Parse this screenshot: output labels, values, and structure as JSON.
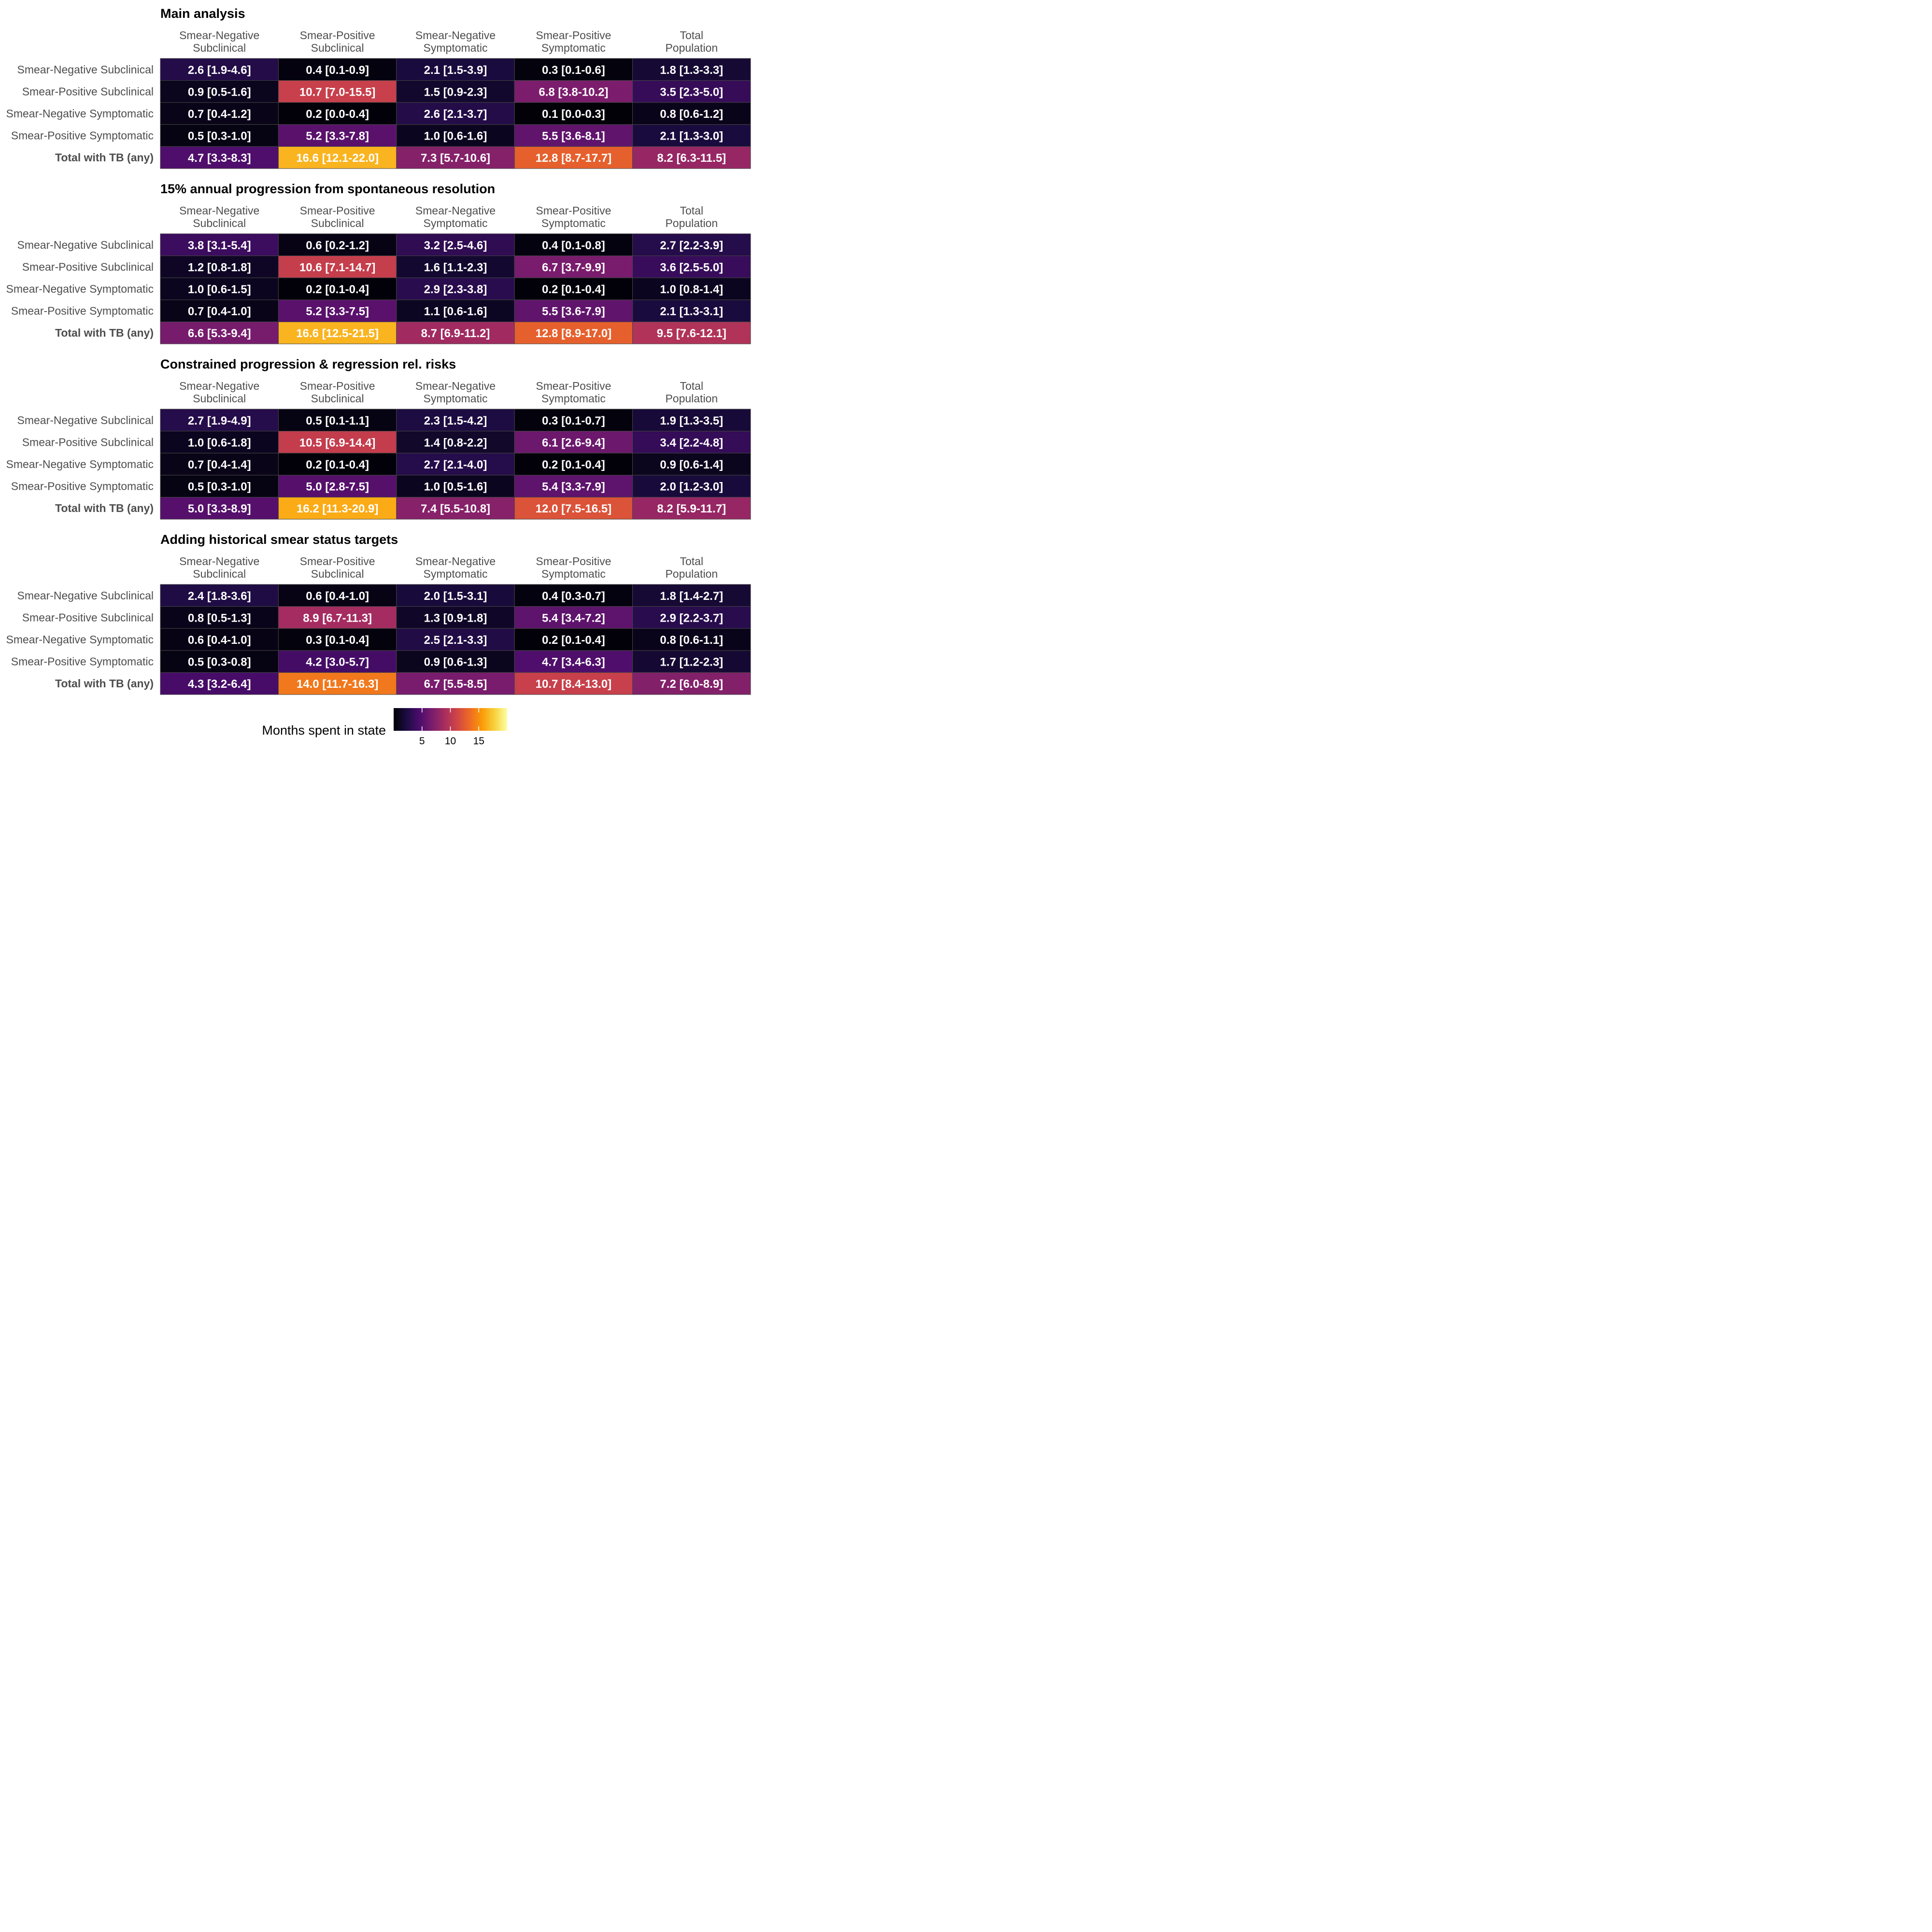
{
  "chart_data": {
    "type": "heatmap",
    "value_label": "Months spent in state",
    "color_scale": {
      "name": "inferno",
      "domain": [
        0,
        20
      ],
      "breaks": [
        5,
        10,
        15
      ],
      "stops": [
        "#000004",
        "#1b0c41",
        "#4a0c6b",
        "#781c6d",
        "#a52c60",
        "#cf4446",
        "#ed6925",
        "#fb9b06",
        "#f7d13d",
        "#fcffa4"
      ]
    },
    "columns": [
      [
        "Smear-Negative",
        "Subclinical"
      ],
      [
        "Smear-Positive",
        "Subclinical"
      ],
      [
        "Smear-Negative",
        "Symptomatic"
      ],
      [
        "Smear-Positive",
        "Symptomatic"
      ],
      [
        "Total",
        "Population"
      ]
    ],
    "rows": [
      {
        "label": "Smear-Negative Subclinical",
        "bold": false
      },
      {
        "label": "Smear-Positive Subclinical",
        "bold": false
      },
      {
        "label": "Smear-Negative Symptomatic",
        "bold": false
      },
      {
        "label": "Smear-Positive Symptomatic",
        "bold": false
      },
      {
        "label": "Total with TB (any)",
        "bold": true
      }
    ],
    "panels": [
      {
        "title": "Main analysis",
        "cells": [
          [
            {
              "v": 2.6,
              "t": "2.6 [1.9-4.6]"
            },
            {
              "v": 0.4,
              "t": "0.4 [0.1-0.9]"
            },
            {
              "v": 2.1,
              "t": "2.1 [1.5-3.9]"
            },
            {
              "v": 0.3,
              "t": "0.3 [0.1-0.6]"
            },
            {
              "v": 1.8,
              "t": "1.8 [1.3-3.3]"
            }
          ],
          [
            {
              "v": 0.9,
              "t": "0.9 [0.5-1.6]"
            },
            {
              "v": 10.7,
              "t": "10.7 [7.0-15.5]"
            },
            {
              "v": 1.5,
              "t": "1.5 [0.9-2.3]"
            },
            {
              "v": 6.8,
              "t": "6.8 [3.8-10.2]"
            },
            {
              "v": 3.5,
              "t": "3.5 [2.3-5.0]"
            }
          ],
          [
            {
              "v": 0.7,
              "t": "0.7 [0.4-1.2]"
            },
            {
              "v": 0.2,
              "t": "0.2 [0.0-0.4]"
            },
            {
              "v": 2.6,
              "t": "2.6 [2.1-3.7]"
            },
            {
              "v": 0.1,
              "t": "0.1 [0.0-0.3]"
            },
            {
              "v": 0.8,
              "t": "0.8 [0.6-1.2]"
            }
          ],
          [
            {
              "v": 0.5,
              "t": "0.5 [0.3-1.0]"
            },
            {
              "v": 5.2,
              "t": "5.2 [3.3-7.8]"
            },
            {
              "v": 1.0,
              "t": "1.0 [0.6-1.6]"
            },
            {
              "v": 5.5,
              "t": "5.5 [3.6-8.1]"
            },
            {
              "v": 2.1,
              "t": "2.1 [1.3-3.0]"
            }
          ],
          [
            {
              "v": 4.7,
              "t": "4.7 [3.3-8.3]"
            },
            {
              "v": 16.6,
              "t": "16.6 [12.1-22.0]"
            },
            {
              "v": 7.3,
              "t": "7.3 [5.7-10.6]"
            },
            {
              "v": 12.8,
              "t": "12.8 [8.7-17.7]"
            },
            {
              "v": 8.2,
              "t": "8.2 [6.3-11.5]"
            }
          ]
        ]
      },
      {
        "title": "15% annual progression from spontaneous resolution",
        "cells": [
          [
            {
              "v": 3.8,
              "t": "3.8 [3.1-5.4]"
            },
            {
              "v": 0.6,
              "t": "0.6 [0.2-1.2]"
            },
            {
              "v": 3.2,
              "t": "3.2 [2.5-4.6]"
            },
            {
              "v": 0.4,
              "t": "0.4 [0.1-0.8]"
            },
            {
              "v": 2.7,
              "t": "2.7 [2.2-3.9]"
            }
          ],
          [
            {
              "v": 1.2,
              "t": "1.2 [0.8-1.8]"
            },
            {
              "v": 10.6,
              "t": "10.6 [7.1-14.7]"
            },
            {
              "v": 1.6,
              "t": "1.6 [1.1-2.3]"
            },
            {
              "v": 6.7,
              "t": "6.7 [3.7-9.9]"
            },
            {
              "v": 3.6,
              "t": "3.6 [2.5-5.0]"
            }
          ],
          [
            {
              "v": 1.0,
              "t": "1.0 [0.6-1.5]"
            },
            {
              "v": 0.2,
              "t": "0.2 [0.1-0.4]"
            },
            {
              "v": 2.9,
              "t": "2.9 [2.3-3.8]"
            },
            {
              "v": 0.2,
              "t": "0.2 [0.1-0.4]"
            },
            {
              "v": 1.0,
              "t": "1.0 [0.8-1.4]"
            }
          ],
          [
            {
              "v": 0.7,
              "t": "0.7 [0.4-1.0]"
            },
            {
              "v": 5.2,
              "t": "5.2 [3.3-7.5]"
            },
            {
              "v": 1.1,
              "t": "1.1 [0.6-1.6]"
            },
            {
              "v": 5.5,
              "t": "5.5 [3.6-7.9]"
            },
            {
              "v": 2.1,
              "t": "2.1 [1.3-3.1]"
            }
          ],
          [
            {
              "v": 6.6,
              "t": "6.6 [5.3-9.4]"
            },
            {
              "v": 16.6,
              "t": "16.6 [12.5-21.5]"
            },
            {
              "v": 8.7,
              "t": "8.7 [6.9-11.2]"
            },
            {
              "v": 12.8,
              "t": "12.8 [8.9-17.0]"
            },
            {
              "v": 9.5,
              "t": "9.5 [7.6-12.1]"
            }
          ]
        ]
      },
      {
        "title": "Constrained progression & regression rel. risks",
        "cells": [
          [
            {
              "v": 2.7,
              "t": "2.7 [1.9-4.9]"
            },
            {
              "v": 0.5,
              "t": "0.5 [0.1-1.1]"
            },
            {
              "v": 2.3,
              "t": "2.3 [1.5-4.2]"
            },
            {
              "v": 0.3,
              "t": "0.3 [0.1-0.7]"
            },
            {
              "v": 1.9,
              "t": "1.9 [1.3-3.5]"
            }
          ],
          [
            {
              "v": 1.0,
              "t": "1.0 [0.6-1.8]"
            },
            {
              "v": 10.5,
              "t": "10.5 [6.9-14.4]"
            },
            {
              "v": 1.4,
              "t": "1.4 [0.8-2.2]"
            },
            {
              "v": 6.1,
              "t": "6.1 [2.6-9.4]"
            },
            {
              "v": 3.4,
              "t": "3.4 [2.2-4.8]"
            }
          ],
          [
            {
              "v": 0.7,
              "t": "0.7 [0.4-1.4]"
            },
            {
              "v": 0.2,
              "t": "0.2 [0.1-0.4]"
            },
            {
              "v": 2.7,
              "t": "2.7 [2.1-4.0]"
            },
            {
              "v": 0.2,
              "t": "0.2 [0.1-0.4]"
            },
            {
              "v": 0.9,
              "t": "0.9 [0.6-1.4]"
            }
          ],
          [
            {
              "v": 0.5,
              "t": "0.5 [0.3-1.0]"
            },
            {
              "v": 5.0,
              "t": "5.0 [2.8-7.5]"
            },
            {
              "v": 1.0,
              "t": "1.0 [0.5-1.6]"
            },
            {
              "v": 5.4,
              "t": "5.4 [3.3-7.9]"
            },
            {
              "v": 2.0,
              "t": "2.0 [1.2-3.0]"
            }
          ],
          [
            {
              "v": 5.0,
              "t": "5.0 [3.3-8.9]"
            },
            {
              "v": 16.2,
              "t": "16.2 [11.3-20.9]"
            },
            {
              "v": 7.4,
              "t": "7.4 [5.5-10.8]"
            },
            {
              "v": 12.0,
              "t": "12.0 [7.5-16.5]"
            },
            {
              "v": 8.2,
              "t": "8.2 [5.9-11.7]"
            }
          ]
        ]
      },
      {
        "title": "Adding historical smear status targets",
        "cells": [
          [
            {
              "v": 2.4,
              "t": "2.4 [1.8-3.6]"
            },
            {
              "v": 0.6,
              "t": "0.6 [0.4-1.0]"
            },
            {
              "v": 2.0,
              "t": "2.0 [1.5-3.1]"
            },
            {
              "v": 0.4,
              "t": "0.4 [0.3-0.7]"
            },
            {
              "v": 1.8,
              "t": "1.8 [1.4-2.7]"
            }
          ],
          [
            {
              "v": 0.8,
              "t": "0.8 [0.5-1.3]"
            },
            {
              "v": 8.9,
              "t": "8.9 [6.7-11.3]"
            },
            {
              "v": 1.3,
              "t": "1.3 [0.9-1.8]"
            },
            {
              "v": 5.4,
              "t": "5.4 [3.4-7.2]"
            },
            {
              "v": 2.9,
              "t": "2.9 [2.2-3.7]"
            }
          ],
          [
            {
              "v": 0.6,
              "t": "0.6 [0.4-1.0]"
            },
            {
              "v": 0.3,
              "t": "0.3 [0.1-0.4]"
            },
            {
              "v": 2.5,
              "t": "2.5 [2.1-3.3]"
            },
            {
              "v": 0.2,
              "t": "0.2 [0.1-0.4]"
            },
            {
              "v": 0.8,
              "t": "0.8 [0.6-1.1]"
            }
          ],
          [
            {
              "v": 0.5,
              "t": "0.5 [0.3-0.8]"
            },
            {
              "v": 4.2,
              "t": "4.2 [3.0-5.7]"
            },
            {
              "v": 0.9,
              "t": "0.9 [0.6-1.3]"
            },
            {
              "v": 4.7,
              "t": "4.7 [3.4-6.3]"
            },
            {
              "v": 1.7,
              "t": "1.7 [1.2-2.3]"
            }
          ],
          [
            {
              "v": 4.3,
              "t": "4.3 [3.2-6.4]"
            },
            {
              "v": 14.0,
              "t": "14.0 [11.7-16.3]"
            },
            {
              "v": 6.7,
              "t": "6.7 [5.5-8.5]"
            },
            {
              "v": 10.7,
              "t": "10.7 [8.4-13.0]"
            },
            {
              "v": 7.2,
              "t": "7.2 [6.0-8.9]"
            }
          ]
        ]
      }
    ]
  }
}
